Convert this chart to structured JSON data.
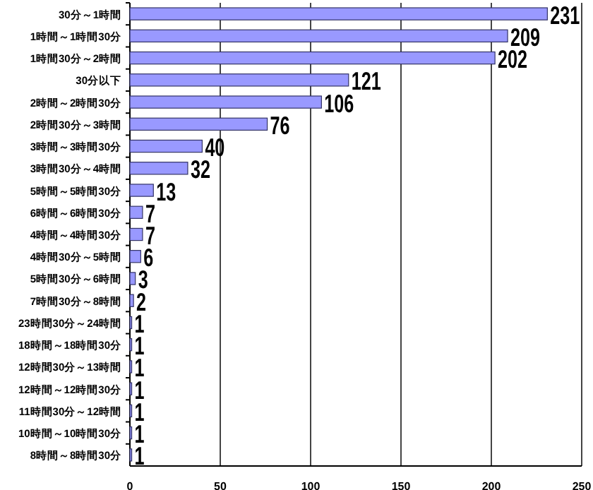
{
  "chart_data": {
    "type": "bar",
    "orientation": "horizontal",
    "categories": [
      "30分～1時間",
      "1時間～1時間30分",
      "1時間30分～2時間",
      "30分以下",
      "2時間～2時間30分",
      "2時間30分～3時間",
      "3時間～3時間30分",
      "3時間30分～4時間",
      "5時間～5時間30分",
      "6時間～6時間30分",
      "4時間～4時間30分",
      "4時間30分～5時間",
      "5時間30分～6時間",
      "7時間30分～8時間",
      "23時間30分～24時間",
      "18時間～18時間30分",
      "12時間30分～13時間",
      "12時間～12時間30分",
      "11時間30分～12時間",
      "10時間～10時間30分",
      "8時間～8時間30分"
    ],
    "values": [
      231,
      209,
      202,
      121,
      106,
      76,
      40,
      32,
      13,
      7,
      7,
      6,
      3,
      2,
      1,
      1,
      1,
      1,
      1,
      1,
      1
    ],
    "color": "#9999ff",
    "xlim": [
      0,
      250
    ],
    "xticks": [
      0,
      50,
      100,
      150,
      200,
      250
    ],
    "grid": "x",
    "data_labels": true
  }
}
